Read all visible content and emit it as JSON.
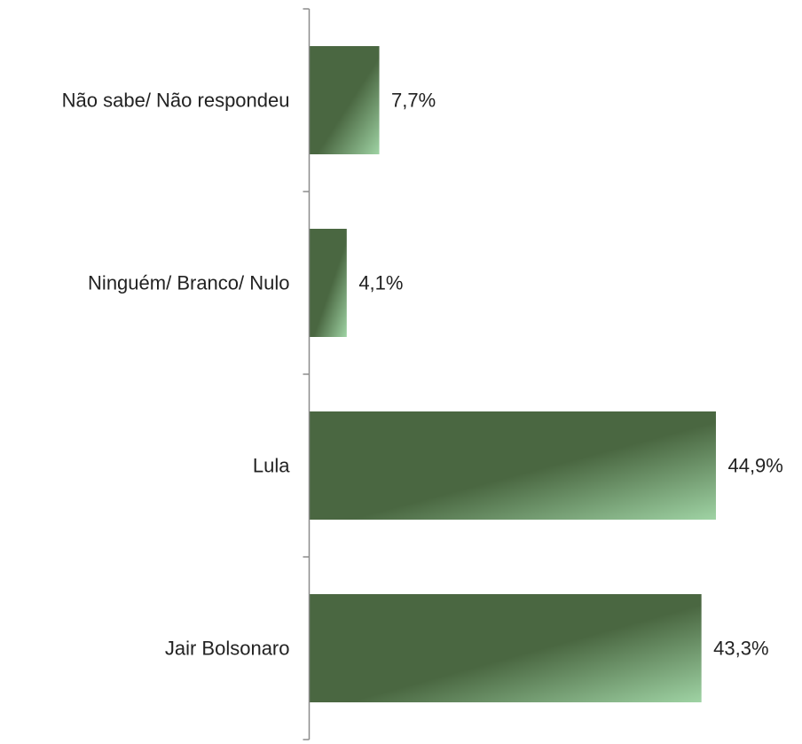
{
  "chart_data": {
    "type": "bar",
    "orientation": "horizontal",
    "categories": [
      "Não sabe/ Não respondeu",
      "Ninguém/ Branco/ Nulo",
      "Lula",
      "Jair Bolsonaro"
    ],
    "values": [
      7.7,
      4.1,
      44.9,
      43.3
    ],
    "value_labels": [
      "7,7%",
      "4,1%",
      "44,9%",
      "43,3%"
    ],
    "title": "",
    "xlabel": "",
    "ylabel": "",
    "xlim": [
      0,
      50
    ],
    "grid": false,
    "legend": "none",
    "bar_color": "#4a6741",
    "bar_highlight_color": "#9fd3a4"
  }
}
